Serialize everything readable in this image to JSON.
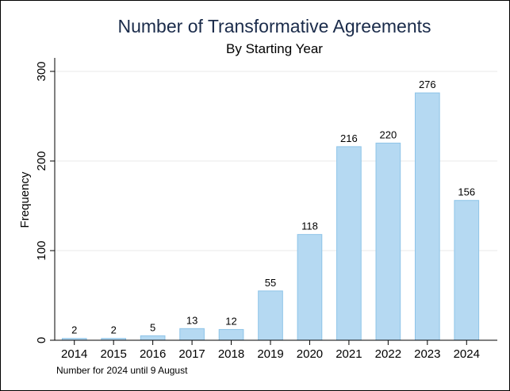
{
  "chart_data": {
    "type": "bar",
    "title": "Number of Transformative Agreements",
    "subtitle": "By Starting Year",
    "xlabel": "",
    "ylabel": "Frequency",
    "categories": [
      "2014",
      "2015",
      "2016",
      "2017",
      "2018",
      "2019",
      "2020",
      "2021",
      "2022",
      "2023",
      "2024"
    ],
    "values": [
      2,
      2,
      5,
      13,
      12,
      55,
      118,
      216,
      220,
      276,
      156
    ],
    "ylim": [
      0,
      300
    ],
    "yticks": [
      0,
      100,
      200,
      300
    ],
    "grid": true,
    "note": "Number for 2024 until 9 August",
    "colors": {
      "bar_fill": "#b5d9f2",
      "bar_stroke": "#8ec4e8",
      "grid": "#eaeaea",
      "title": "#1a2b4a"
    }
  }
}
